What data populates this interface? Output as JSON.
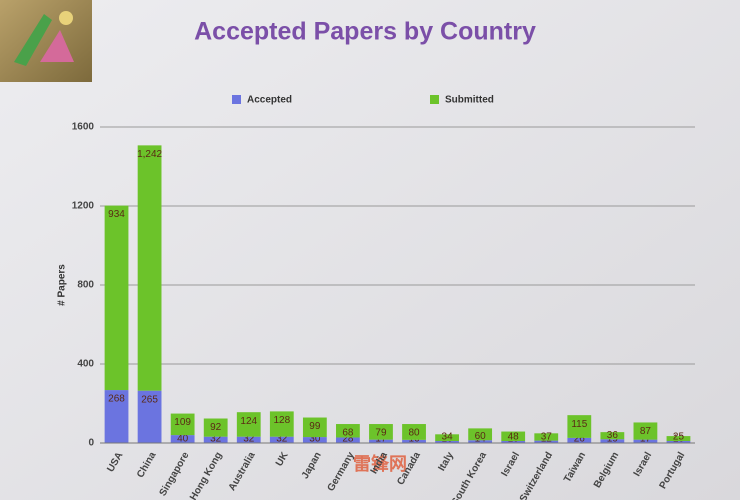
{
  "chart_data": {
    "type": "stacked_bar",
    "title": "Accepted Papers by Country",
    "y_label": "# Papers",
    "categories": [
      "USA",
      "China",
      "Singapore",
      "Hong Kong",
      "Australia",
      "UK",
      "Japan",
      "Germany",
      "India",
      "Canada",
      "Italy",
      "South Korea",
      "Israel",
      "Switzerland",
      "Taiwan",
      "Belgium",
      "Israel",
      "Portugal"
    ],
    "series": [
      {
        "name": "Accepted",
        "color": "#6b74e0",
        "values": [
          268,
          265,
          40,
          32,
          32,
          32,
          30,
          28,
          17,
          16,
          10,
          14,
          10,
          12,
          26,
          19,
          17,
          10
        ]
      },
      {
        "name": "Submitted",
        "color": "#6cc32a",
        "values": [
          934,
          1242,
          109,
          92,
          124,
          128,
          99,
          68,
          79,
          80,
          34,
          60,
          48,
          37,
          115,
          36,
          87,
          25
        ],
        "value_labels": [
          "934",
          "1,242",
          "109",
          "92",
          "124",
          "128",
          "99",
          "68",
          "79",
          "80",
          "34",
          "60",
          "48",
          "37",
          "115",
          "36",
          "87",
          "25"
        ]
      }
    ],
    "ylim": [
      0,
      1600
    ],
    "yticks": [
      0,
      400,
      800,
      1200,
      1600
    ],
    "grid": true,
    "legend": "top"
  },
  "watermark": "雷锋网"
}
